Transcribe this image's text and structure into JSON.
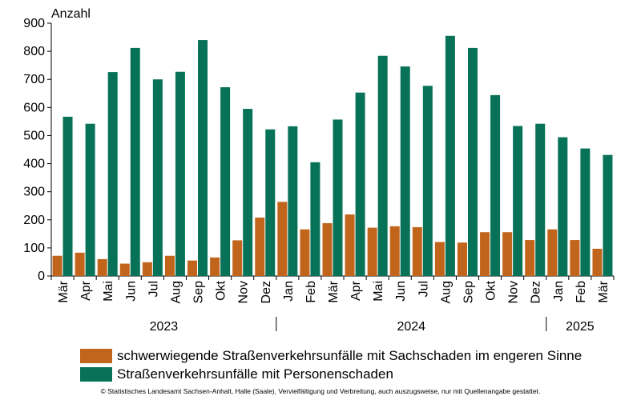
{
  "chart_data": {
    "type": "bar",
    "ylabel": "Anzahl",
    "ylim": [
      0,
      900
    ],
    "yticks": [
      0,
      100,
      200,
      300,
      400,
      500,
      600,
      700,
      800,
      900
    ],
    "categories": [
      "Mär",
      "Apr",
      "Mai",
      "Jun",
      "Jul",
      "Aug",
      "Sep",
      "Okt",
      "Nov",
      "Dez",
      "Jan",
      "Feb",
      "Mär",
      "Apr",
      "Mai",
      "Jun",
      "Jul",
      "Aug",
      "Sep",
      "Okt",
      "Nov",
      "Dez",
      "Jan",
      "Feb",
      "Mär"
    ],
    "year_groups": [
      {
        "label": "2023",
        "start": 0,
        "end": 9
      },
      {
        "label": "2024",
        "start": 10,
        "end": 21
      },
      {
        "label": "2025",
        "start": 22,
        "end": 24
      }
    ],
    "series": [
      {
        "name": "schwerwiegende Straßenverkehrsunfälle mit Sachschaden im engeren Sinne",
        "color": "#c0651b",
        "values": [
          72,
          83,
          60,
          44,
          49,
          72,
          55,
          66,
          127,
          208,
          264,
          166,
          188,
          219,
          172,
          177,
          174,
          121,
          119,
          156,
          156,
          128,
          166,
          128,
          97
        ]
      },
      {
        "name": "Straßenverkehrsunfälle mit Personenschaden",
        "color": "#077257",
        "values": [
          567,
          542,
          726,
          812,
          700,
          727,
          840,
          672,
          595,
          522,
          533,
          405,
          557,
          653,
          784,
          746,
          677,
          855,
          812,
          644,
          534,
          542,
          494,
          454,
          431
        ]
      }
    ],
    "grid": false,
    "legend_position": "bottom"
  },
  "footer": {
    "copyright": "© Statistisches Landesamt Sachsen-Anhalt, Halle (Saale), Vervielfältigung und Verbreitung, auch auszugsweise, nur mit Quellenangabe gestattet."
  }
}
